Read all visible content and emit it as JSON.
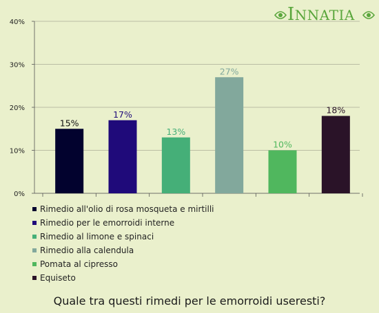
{
  "brand": {
    "logo_text_first": "I",
    "logo_text_rest": "NNATIA",
    "logo_color": "#5aa63c"
  },
  "question": "Quale tra questi rimedi per le emorroidi useresti?",
  "chart_data": {
    "type": "bar",
    "categories": [
      "Rimedio all'olio di rosa mosqueta e mirtilli",
      "Rimedio per le emorroidi interne",
      "Rimedio al limone e spinaci",
      "Rimedio alla calendula",
      "Pomata al cipresso",
      "Equiseto"
    ],
    "values": [
      15,
      17,
      13,
      27,
      10,
      18
    ],
    "data_labels": [
      "15%",
      "17%",
      "13%",
      "27%",
      "10%",
      "18%"
    ],
    "colors": [
      "#02022e",
      "#1f0a7a",
      "#45af78",
      "#82a89c",
      "#50b75e",
      "#2a1328"
    ],
    "label_colors": [
      "#111111",
      "#1f0a7a",
      "#45af78",
      "#82a89c",
      "#50b75e",
      "#2a1328"
    ],
    "ylim": [
      0,
      40
    ],
    "yticks": [
      0,
      10,
      20,
      30,
      40
    ],
    "ytick_labels": [
      "0%",
      "10%",
      "20%",
      "30%",
      "40%"
    ],
    "grid": true,
    "legend_position": "bottom",
    "title": "",
    "xlabel": "",
    "ylabel": ""
  }
}
